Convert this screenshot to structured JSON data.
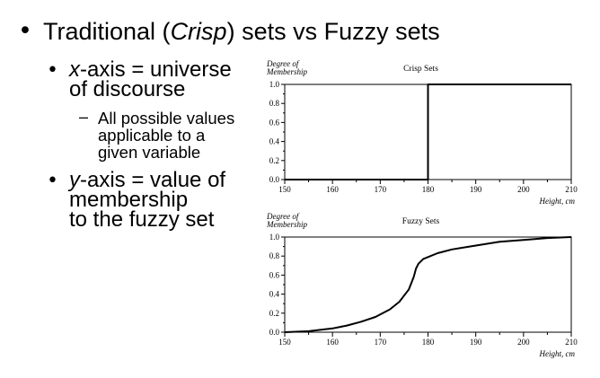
{
  "slide": {
    "title_pre": "Traditional (",
    "title_em": "Crisp",
    "title_post": ") sets vs Fuzzy sets",
    "bullets": [
      {
        "em": "x",
        "line1_rest": "-axis = universe",
        "line2": "of discourse"
      },
      {
        "em": "y",
        "line1_rest": "-axis = value of",
        "line2": "membership",
        "line3": "to the fuzzy set"
      }
    ],
    "sub_bullet": {
      "line1": "All possible values",
      "line2": "applicable to a",
      "line3": "given variable"
    }
  },
  "chart_data": [
    {
      "type": "line",
      "title": "Crisp Sets",
      "ylabel": "Degree of Membership",
      "xlabel": "Height, cm",
      "xlim": [
        150,
        210
      ],
      "ylim": [
        0,
        1
      ],
      "x_ticks": [
        "150",
        "160",
        "170",
        "180",
        "190",
        "200",
        "210"
      ],
      "y_ticks": [
        "0.0",
        "0.2",
        "0.4",
        "0.6",
        "0.8",
        "1.0"
      ],
      "series": [
        {
          "x": [
            150,
            180,
            180,
            210
          ],
          "y": [
            0,
            0,
            1,
            1
          ]
        }
      ]
    },
    {
      "type": "line",
      "title": "Fuzzy Sets",
      "ylabel": "Degree of Membership",
      "xlabel": "Height, cm",
      "xlim": [
        150,
        210
      ],
      "ylim": [
        0,
        1
      ],
      "x_ticks": [
        "150",
        "160",
        "170",
        "180",
        "190",
        "200",
        "210"
      ],
      "y_ticks": [
        "0.0",
        "0.2",
        "0.4",
        "0.6",
        "0.8",
        "1.0"
      ],
      "series": [
        {
          "x": [
            150,
            155,
            160,
            163,
            166,
            169,
            172,
            174,
            176,
            177,
            177.5,
            178,
            179,
            180,
            182,
            185,
            190,
            195,
            200,
            205,
            210
          ],
          "y": [
            0,
            0.01,
            0.04,
            0.07,
            0.11,
            0.16,
            0.24,
            0.32,
            0.45,
            0.58,
            0.67,
            0.72,
            0.77,
            0.79,
            0.83,
            0.87,
            0.91,
            0.95,
            0.97,
            0.99,
            1.0
          ]
        }
      ]
    }
  ]
}
